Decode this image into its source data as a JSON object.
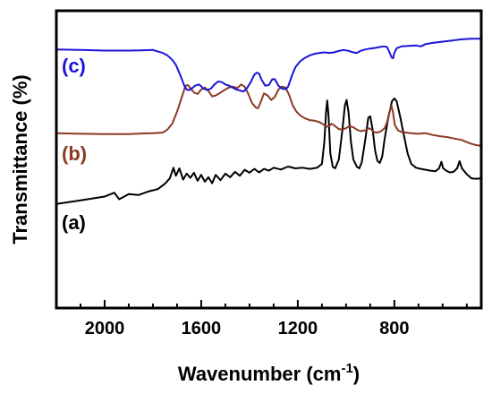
{
  "chart_data": {
    "type": "line",
    "title": "",
    "xlabel": "Wavenumber (cm",
    "xlabel_sup": "-1",
    "xlabel_close": ")",
    "ylabel": "Transmittance (%)",
    "xlim": [
      2200,
      440
    ],
    "x_reversed": true,
    "y_tick_labels": false,
    "xticks": [
      2000,
      1600,
      1200,
      800
    ],
    "xtick_labels": [
      "2000",
      "1600",
      "1200",
      "800"
    ],
    "grid": false,
    "series": [
      {
        "name": "(a)",
        "color": "#000000",
        "points": [
          [
            2200,
            0.35
          ],
          [
            2100,
            0.362
          ],
          [
            2000,
            0.375
          ],
          [
            1960,
            0.388
          ],
          [
            1940,
            0.366
          ],
          [
            1900,
            0.383
          ],
          [
            1860,
            0.38
          ],
          [
            1820,
            0.392
          ],
          [
            1780,
            0.4
          ],
          [
            1750,
            0.418
          ],
          [
            1730,
            0.436
          ],
          [
            1715,
            0.472
          ],
          [
            1705,
            0.445
          ],
          [
            1690,
            0.47
          ],
          [
            1675,
            0.432
          ],
          [
            1660,
            0.452
          ],
          [
            1645,
            0.438
          ],
          [
            1630,
            0.455
          ],
          [
            1615,
            0.428
          ],
          [
            1600,
            0.448
          ],
          [
            1585,
            0.425
          ],
          [
            1570,
            0.44
          ],
          [
            1555,
            0.42
          ],
          [
            1540,
            0.448
          ],
          [
            1520,
            0.43
          ],
          [
            1500,
            0.452
          ],
          [
            1480,
            0.44
          ],
          [
            1460,
            0.458
          ],
          [
            1440,
            0.445
          ],
          [
            1420,
            0.465
          ],
          [
            1400,
            0.455
          ],
          [
            1380,
            0.468
          ],
          [
            1360,
            0.456
          ],
          [
            1340,
            0.468
          ],
          [
            1320,
            0.462
          ],
          [
            1300,
            0.472
          ],
          [
            1270,
            0.466
          ],
          [
            1240,
            0.476
          ],
          [
            1210,
            0.47
          ],
          [
            1180,
            0.472
          ],
          [
            1150,
            0.468
          ],
          [
            1120,
            0.472
          ],
          [
            1100,
            0.485
          ],
          [
            1090,
            0.56
          ],
          [
            1083,
            0.66
          ],
          [
            1078,
            0.698
          ],
          [
            1073,
            0.65
          ],
          [
            1065,
            0.52
          ],
          [
            1055,
            0.475
          ],
          [
            1045,
            0.47
          ],
          [
            1030,
            0.5
          ],
          [
            1015,
            0.6
          ],
          [
            1005,
            0.68
          ],
          [
            998,
            0.7
          ],
          [
            990,
            0.66
          ],
          [
            980,
            0.56
          ],
          [
            970,
            0.5
          ],
          [
            955,
            0.475
          ],
          [
            945,
            0.47
          ],
          [
            935,
            0.49
          ],
          [
            920,
            0.57
          ],
          [
            908,
            0.64
          ],
          [
            900,
            0.645
          ],
          [
            890,
            0.6
          ],
          [
            880,
            0.53
          ],
          [
            870,
            0.495
          ],
          [
            860,
            0.488
          ],
          [
            850,
            0.51
          ],
          [
            840,
            0.57
          ],
          [
            825,
            0.64
          ],
          [
            810,
            0.695
          ],
          [
            800,
            0.705
          ],
          [
            790,
            0.695
          ],
          [
            775,
            0.64
          ],
          [
            760,
            0.58
          ],
          [
            745,
            0.52
          ],
          [
            730,
            0.485
          ],
          [
            710,
            0.472
          ],
          [
            690,
            0.468
          ],
          [
            670,
            0.465
          ],
          [
            650,
            0.462
          ],
          [
            630,
            0.46
          ],
          [
            615,
            0.47
          ],
          [
            605,
            0.492
          ],
          [
            598,
            0.47
          ],
          [
            585,
            0.462
          ],
          [
            570,
            0.456
          ],
          [
            555,
            0.458
          ],
          [
            540,
            0.47
          ],
          [
            530,
            0.494
          ],
          [
            520,
            0.47
          ],
          [
            500,
            0.45
          ],
          [
            480,
            0.436
          ],
          [
            460,
            0.435
          ],
          [
            440,
            0.436
          ]
        ]
      },
      {
        "name": "(b)",
        "color": "#8b3a24",
        "points": [
          [
            2200,
            0.588
          ],
          [
            2100,
            0.586
          ],
          [
            2000,
            0.585
          ],
          [
            1900,
            0.585
          ],
          [
            1850,
            0.587
          ],
          [
            1800,
            0.588
          ],
          [
            1760,
            0.59
          ],
          [
            1740,
            0.6
          ],
          [
            1720,
            0.62
          ],
          [
            1700,
            0.66
          ],
          [
            1680,
            0.71
          ],
          [
            1665,
            0.748
          ],
          [
            1655,
            0.75
          ],
          [
            1645,
            0.74
          ],
          [
            1630,
            0.725
          ],
          [
            1615,
            0.72
          ],
          [
            1600,
            0.735
          ],
          [
            1585,
            0.742
          ],
          [
            1570,
            0.73
          ],
          [
            1555,
            0.712
          ],
          [
            1540,
            0.715
          ],
          [
            1525,
            0.722
          ],
          [
            1510,
            0.73
          ],
          [
            1490,
            0.74
          ],
          [
            1470,
            0.745
          ],
          [
            1450,
            0.74
          ],
          [
            1435,
            0.752
          ],
          [
            1420,
            0.745
          ],
          [
            1405,
            0.72
          ],
          [
            1390,
            0.69
          ],
          [
            1375,
            0.675
          ],
          [
            1365,
            0.672
          ],
          [
            1355,
            0.69
          ],
          [
            1340,
            0.722
          ],
          [
            1325,
            0.715
          ],
          [
            1310,
            0.7
          ],
          [
            1295,
            0.71
          ],
          [
            1280,
            0.735
          ],
          [
            1265,
            0.745
          ],
          [
            1250,
            0.742
          ],
          [
            1235,
            0.715
          ],
          [
            1220,
            0.68
          ],
          [
            1205,
            0.66
          ],
          [
            1190,
            0.648
          ],
          [
            1170,
            0.638
          ],
          [
            1150,
            0.632
          ],
          [
            1130,
            0.63
          ],
          [
            1110,
            0.625
          ],
          [
            1095,
            0.618
          ],
          [
            1080,
            0.61
          ],
          [
            1070,
            0.612
          ],
          [
            1060,
            0.62
          ],
          [
            1050,
            0.615
          ],
          [
            1040,
            0.608
          ],
          [
            1030,
            0.602
          ],
          [
            1015,
            0.6
          ],
          [
            1000,
            0.605
          ],
          [
            985,
            0.612
          ],
          [
            970,
            0.608
          ],
          [
            955,
            0.6
          ],
          [
            940,
            0.595
          ],
          [
            920,
            0.598
          ],
          [
            905,
            0.605
          ],
          [
            895,
            0.6
          ],
          [
            885,
            0.592
          ],
          [
            870,
            0.59
          ],
          [
            855,
            0.595
          ],
          [
            840,
            0.605
          ],
          [
            830,
            0.625
          ],
          [
            820,
            0.66
          ],
          [
            812,
            0.68
          ],
          [
            806,
            0.66
          ],
          [
            798,
            0.615
          ],
          [
            785,
            0.598
          ],
          [
            770,
            0.592
          ],
          [
            750,
            0.59
          ],
          [
            730,
            0.588
          ],
          [
            700,
            0.586
          ],
          [
            670,
            0.588
          ],
          [
            640,
            0.582
          ],
          [
            610,
            0.578
          ],
          [
            580,
            0.575
          ],
          [
            550,
            0.57
          ],
          [
            520,
            0.565
          ],
          [
            500,
            0.558
          ],
          [
            480,
            0.552
          ],
          [
            460,
            0.548
          ],
          [
            440,
            0.546
          ]
        ]
      },
      {
        "name": "(c)",
        "color": "#1a14d9",
        "points": [
          [
            2200,
            0.87
          ],
          [
            2100,
            0.868
          ],
          [
            2000,
            0.866
          ],
          [
            1900,
            0.866
          ],
          [
            1850,
            0.867
          ],
          [
            1800,
            0.868
          ],
          [
            1760,
            0.858
          ],
          [
            1740,
            0.85
          ],
          [
            1720,
            0.835
          ],
          [
            1705,
            0.818
          ],
          [
            1690,
            0.79
          ],
          [
            1680,
            0.77
          ],
          [
            1670,
            0.748
          ],
          [
            1660,
            0.735
          ],
          [
            1650,
            0.733
          ],
          [
            1640,
            0.738
          ],
          [
            1625,
            0.748
          ],
          [
            1610,
            0.752
          ],
          [
            1600,
            0.746
          ],
          [
            1590,
            0.738
          ],
          [
            1575,
            0.733
          ],
          [
            1560,
            0.738
          ],
          [
            1545,
            0.752
          ],
          [
            1530,
            0.762
          ],
          [
            1515,
            0.76
          ],
          [
            1500,
            0.752
          ],
          [
            1485,
            0.748
          ],
          [
            1470,
            0.742
          ],
          [
            1455,
            0.735
          ],
          [
            1440,
            0.732
          ],
          [
            1425,
            0.728
          ],
          [
            1410,
            0.74
          ],
          [
            1395,
            0.76
          ],
          [
            1380,
            0.785
          ],
          [
            1370,
            0.792
          ],
          [
            1360,
            0.788
          ],
          [
            1350,
            0.768
          ],
          [
            1335,
            0.748
          ],
          [
            1320,
            0.75
          ],
          [
            1305,
            0.77
          ],
          [
            1295,
            0.77
          ],
          [
            1280,
            0.748
          ],
          [
            1265,
            0.738
          ],
          [
            1250,
            0.736
          ],
          [
            1240,
            0.745
          ],
          [
            1225,
            0.78
          ],
          [
            1210,
            0.81
          ],
          [
            1190,
            0.83
          ],
          [
            1170,
            0.842
          ],
          [
            1150,
            0.85
          ],
          [
            1130,
            0.855
          ],
          [
            1110,
            0.858
          ],
          [
            1090,
            0.86
          ],
          [
            1070,
            0.858
          ],
          [
            1050,
            0.86
          ],
          [
            1030,
            0.865
          ],
          [
            1010,
            0.868
          ],
          [
            990,
            0.865
          ],
          [
            970,
            0.86
          ],
          [
            955,
            0.858
          ],
          [
            940,
            0.865
          ],
          [
            920,
            0.87
          ],
          [
            900,
            0.873
          ],
          [
            880,
            0.875
          ],
          [
            860,
            0.878
          ],
          [
            845,
            0.88
          ],
          [
            830,
            0.878
          ],
          [
            820,
            0.86
          ],
          [
            810,
            0.842
          ],
          [
            805,
            0.84
          ],
          [
            800,
            0.858
          ],
          [
            790,
            0.874
          ],
          [
            770,
            0.88
          ],
          [
            740,
            0.882
          ],
          [
            710,
            0.883
          ],
          [
            690,
            0.88
          ],
          [
            670,
            0.888
          ],
          [
            640,
            0.892
          ],
          [
            600,
            0.896
          ],
          [
            560,
            0.9
          ],
          [
            520,
            0.904
          ],
          [
            480,
            0.906
          ],
          [
            440,
            0.906
          ]
        ]
      }
    ]
  }
}
